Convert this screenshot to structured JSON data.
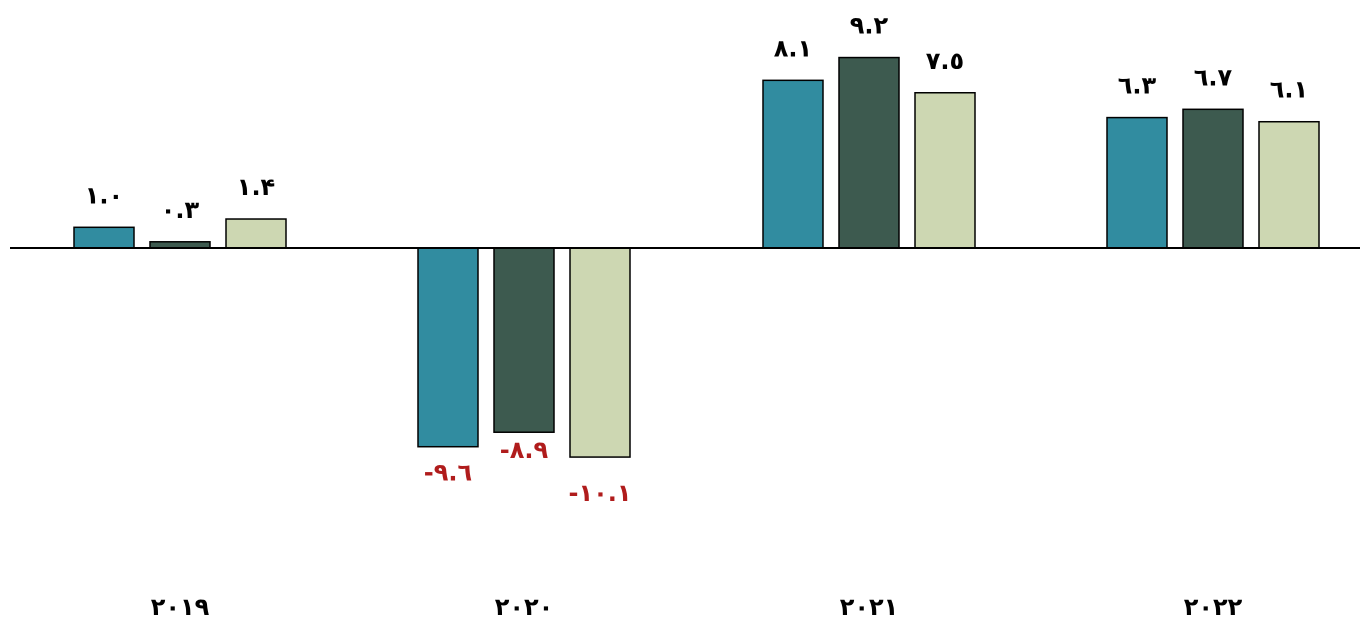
{
  "chart_data": {
    "type": "bar",
    "categories": [
      "٢٠١٩",
      "٢٠٢٠",
      "٢٠٢١",
      "٢٠٢٢"
    ],
    "series": [
      {
        "color": "#318ca0",
        "values": [
          1.0,
          -9.6,
          8.1,
          6.3
        ],
        "labels": [
          "١.٠",
          "-٩.٦",
          "٨.١",
          "٦.٣"
        ]
      },
      {
        "color": "#3d5a4f",
        "values": [
          0.3,
          -8.9,
          9.2,
          6.7
        ],
        "labels": [
          "٠.٣",
          "-٨.٩",
          "٩.٢",
          "٦.٧"
        ]
      },
      {
        "color": "#cdd7b2",
        "values": [
          1.4,
          -10.1,
          7.5,
          6.1
        ],
        "labels": [
          "١.۴",
          "-١٠.١",
          "٧.٥",
          "٦.١"
        ]
      }
    ],
    "ylim": [
      -10.1,
      9.2
    ],
    "positive_label_color": "#000000",
    "negative_label_color": "#b01c1c",
    "grid": false,
    "legend": "none"
  }
}
